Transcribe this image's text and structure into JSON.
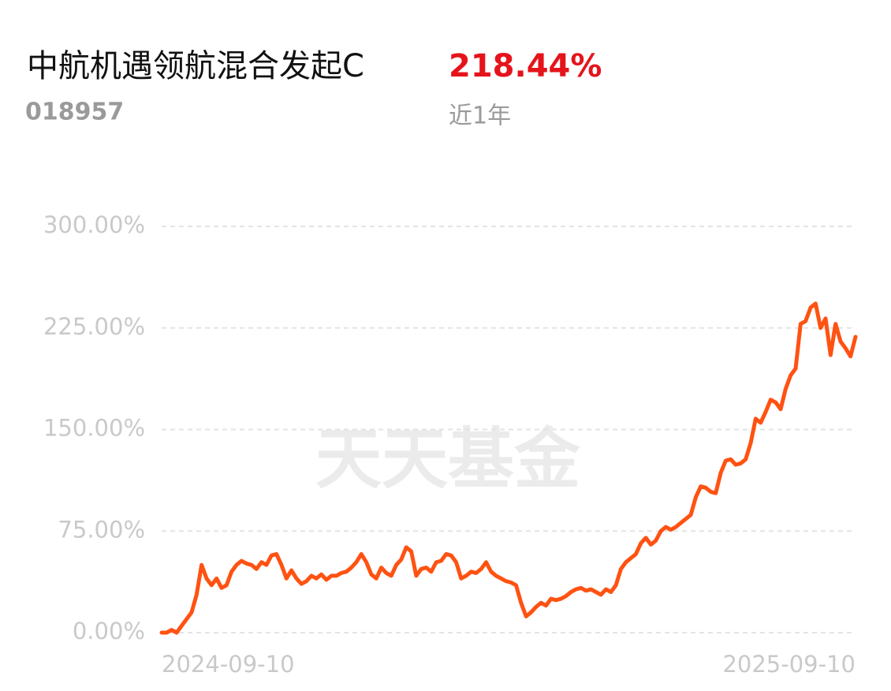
{
  "header": {
    "title": "中航机遇领航混合发起C",
    "return": "218.44%",
    "code": "018957",
    "period": "近1年"
  },
  "watermark": "天天基金",
  "chart_data": {
    "type": "line",
    "color": "#ff5212",
    "grid": true,
    "ylim": [
      0,
      300
    ],
    "yticks": [
      {
        "value": 0,
        "label": "0.00%"
      },
      {
        "value": 75,
        "label": "75.00%"
      },
      {
        "value": 150,
        "label": "150.00%"
      },
      {
        "value": 225,
        "label": "225.00%"
      },
      {
        "value": 300,
        "label": "300.00%"
      }
    ],
    "categories": [
      "2024-09-10",
      null,
      null,
      null,
      null,
      null,
      null,
      null,
      null,
      null,
      null,
      null,
      null,
      null,
      null,
      null,
      null,
      null,
      null,
      null,
      null,
      null,
      null,
      null,
      null,
      null,
      null,
      null,
      null,
      null,
      null,
      null,
      null,
      null,
      null,
      null,
      null,
      null,
      null,
      null,
      null,
      null,
      null,
      null,
      null,
      null,
      null,
      null,
      null,
      null,
      null,
      null,
      null,
      null,
      null,
      null,
      null,
      null,
      null,
      null,
      null,
      null,
      null,
      null,
      null,
      null,
      null,
      null,
      null,
      null,
      null,
      null,
      null,
      null,
      null,
      null,
      null,
      null,
      null,
      null,
      null,
      null,
      null,
      null,
      null,
      null,
      null,
      null,
      null,
      null,
      null,
      null,
      null,
      null,
      null,
      null,
      null,
      null,
      null,
      null,
      null,
      null,
      null,
      null,
      null,
      null,
      null,
      null,
      null,
      null,
      null,
      null,
      null,
      null,
      null,
      null,
      null,
      null,
      null,
      null,
      null,
      null,
      null,
      null,
      null,
      null,
      null,
      null,
      null,
      null,
      null,
      null,
      null,
      null,
      null,
      null,
      null,
      null,
      null,
      "2025-09-10"
    ],
    "values": [
      0,
      0,
      2,
      0,
      5,
      10,
      15,
      28,
      50,
      40,
      35,
      40,
      33,
      35,
      45,
      50,
      53,
      51,
      50,
      47,
      52,
      50,
      57,
      58,
      50,
      40,
      46,
      40,
      36,
      38,
      42,
      40,
      43,
      39,
      42,
      42,
      44,
      45,
      48,
      52,
      58,
      52,
      43,
      40,
      48,
      44,
      42,
      50,
      54,
      63,
      60,
      42,
      47,
      48,
      45,
      52,
      53,
      58,
      57,
      52,
      40,
      42,
      45,
      44,
      47,
      52,
      45,
      42,
      40,
      38,
      37,
      35,
      22,
      12,
      15,
      19,
      22,
      20,
      25,
      24,
      25,
      27,
      30,
      32,
      33,
      31,
      32,
      30,
      28,
      32,
      30,
      35,
      47,
      52,
      55,
      58,
      66,
      70,
      65,
      68,
      75,
      78,
      76,
      78,
      81,
      84,
      87,
      100,
      108,
      107,
      104,
      103,
      118,
      127,
      128,
      124,
      125,
      128,
      140,
      158,
      155,
      163,
      172,
      170,
      165,
      180,
      190,
      195,
      228,
      230,
      240,
      243,
      225,
      232,
      205,
      228,
      215,
      210,
      204,
      218.44
    ]
  }
}
